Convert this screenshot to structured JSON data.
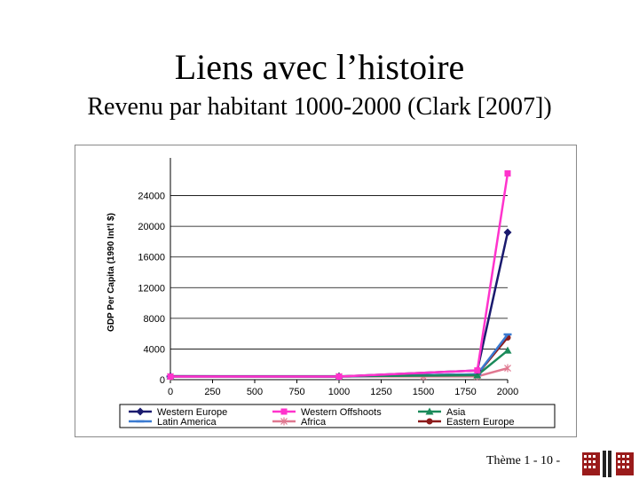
{
  "slide": {
    "title": "Liens avec l’histoire",
    "subtitle": "Revenu par habitant 1000-2000 (Clark [2007])",
    "footer": "Thème 1 - 10 -"
  },
  "chart_data": {
    "type": "line",
    "ylabel": "GDP Per Capita (1990 Int'l $)",
    "xlabel": "",
    "x": [
      0,
      1000,
      1820,
      2000
    ],
    "xlim": [
      0,
      2000
    ],
    "ylim": [
      0,
      28000
    ],
    "xticks": [
      0,
      250,
      500,
      750,
      1000,
      1250,
      1500,
      1750,
      2000
    ],
    "yticks": [
      0,
      4000,
      8000,
      12000,
      16000,
      20000,
      24000
    ],
    "grid": "horizontal",
    "legend_position": "bottom",
    "series": [
      {
        "name": "Western Europe",
        "x": [
          0,
          1000,
          1820,
          2000
        ],
        "values": [
          450,
          400,
          1200,
          19200
        ],
        "color": "#1a1a6e",
        "marker": "diamond"
      },
      {
        "name": "Western Offshoots",
        "x": [
          0,
          1000,
          1820,
          2000
        ],
        "values": [
          400,
          400,
          1200,
          26900
        ],
        "color": "#ff33cc",
        "marker": "square"
      },
      {
        "name": "Asia",
        "x": [
          0,
          1000,
          1820,
          2000
        ],
        "values": [
          450,
          450,
          580,
          3800
        ],
        "color": "#1a8a5a",
        "marker": "triangle"
      },
      {
        "name": "Latin America",
        "x": [
          0,
          1000,
          1820,
          2000
        ],
        "values": [
          400,
          400,
          700,
          5900
        ],
        "color": "#3a7ad0",
        "marker": "dash"
      },
      {
        "name": "Africa",
        "x": [
          0,
          1000,
          1500,
          1820,
          2000
        ],
        "values": [
          420,
          420,
          420,
          420,
          1500
        ],
        "color": "#e07890",
        "marker": "star"
      },
      {
        "name": "Eastern Europe",
        "x": [
          0,
          1000,
          1820,
          2000
        ],
        "values": [
          400,
          400,
          700,
          5500
        ],
        "color": "#8b1a1a",
        "marker": "circle"
      }
    ],
    "colors": {
      "axis": "#000000",
      "grid": "#000000",
      "frame": "#8a8a8a"
    }
  }
}
